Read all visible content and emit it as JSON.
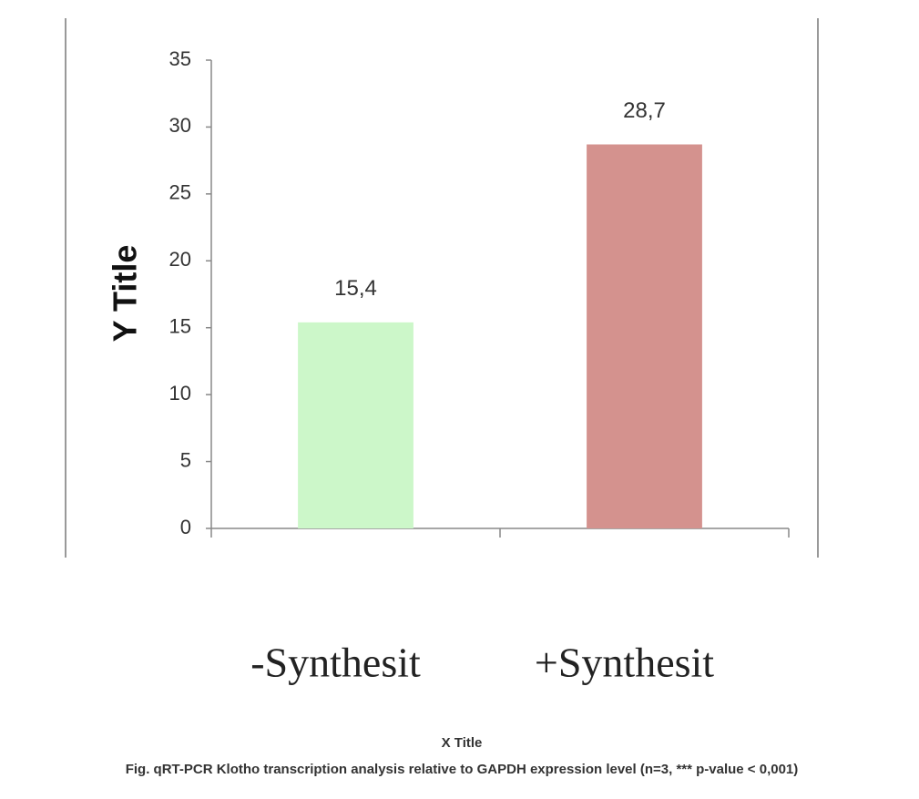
{
  "chart_data": {
    "type": "bar",
    "y_title": "Y Title",
    "x_title": "X Title",
    "caption": "Fig. qRT-PCR Klotho transcription analysis relative to GAPDH expression level (n=3, *** p-value < 0,001)",
    "categories": [
      "-Synthesit",
      "+Synthesit"
    ],
    "values": [
      15.4,
      28.7
    ],
    "value_labels": [
      "15,4",
      "28,7"
    ],
    "colors": [
      "#ccf7c9",
      "#d4928e"
    ],
    "ylim": [
      0,
      35
    ],
    "yticks": [
      0,
      5,
      10,
      15,
      20,
      25,
      30,
      35
    ]
  }
}
